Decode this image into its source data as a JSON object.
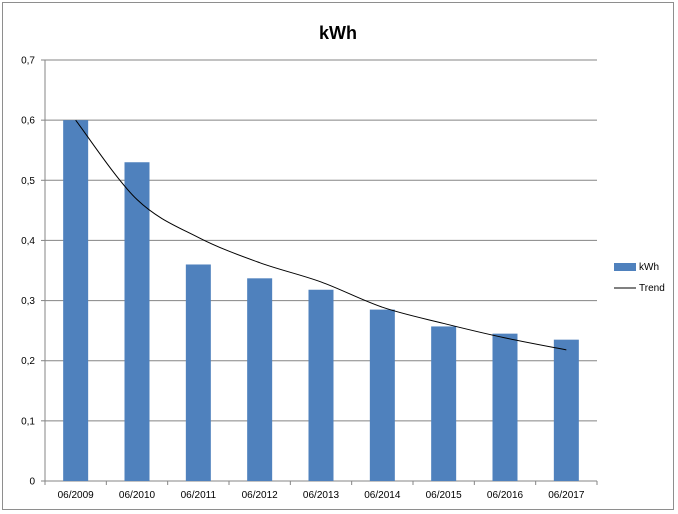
{
  "chart_data": {
    "type": "bar",
    "title": "kWh",
    "xlabel": "",
    "ylabel": "",
    "categories": [
      "06/2009",
      "06/2010",
      "06/2011",
      "06/2012",
      "06/2013",
      "06/2014",
      "06/2015",
      "06/2016",
      "06/2017"
    ],
    "series": [
      {
        "name": "kWh",
        "type": "bar",
        "values": [
          0.6,
          0.53,
          0.36,
          0.337,
          0.318,
          0.285,
          0.257,
          0.245,
          0.235
        ]
      },
      {
        "name": "Trend",
        "type": "line",
        "values": [
          0.6,
          0.468,
          0.405,
          0.363,
          0.331,
          0.289,
          0.262,
          0.238,
          0.218
        ]
      }
    ],
    "ylim": [
      0,
      0.7
    ],
    "yticks": [
      "0",
      "0,1",
      "0,2",
      "0,3",
      "0,4",
      "0,5",
      "0,6",
      "0,7"
    ],
    "grid": true,
    "legend_position": "right",
    "colors": {
      "bar": "#4f81bd",
      "trend": "#000000",
      "grid": "#858585"
    }
  }
}
